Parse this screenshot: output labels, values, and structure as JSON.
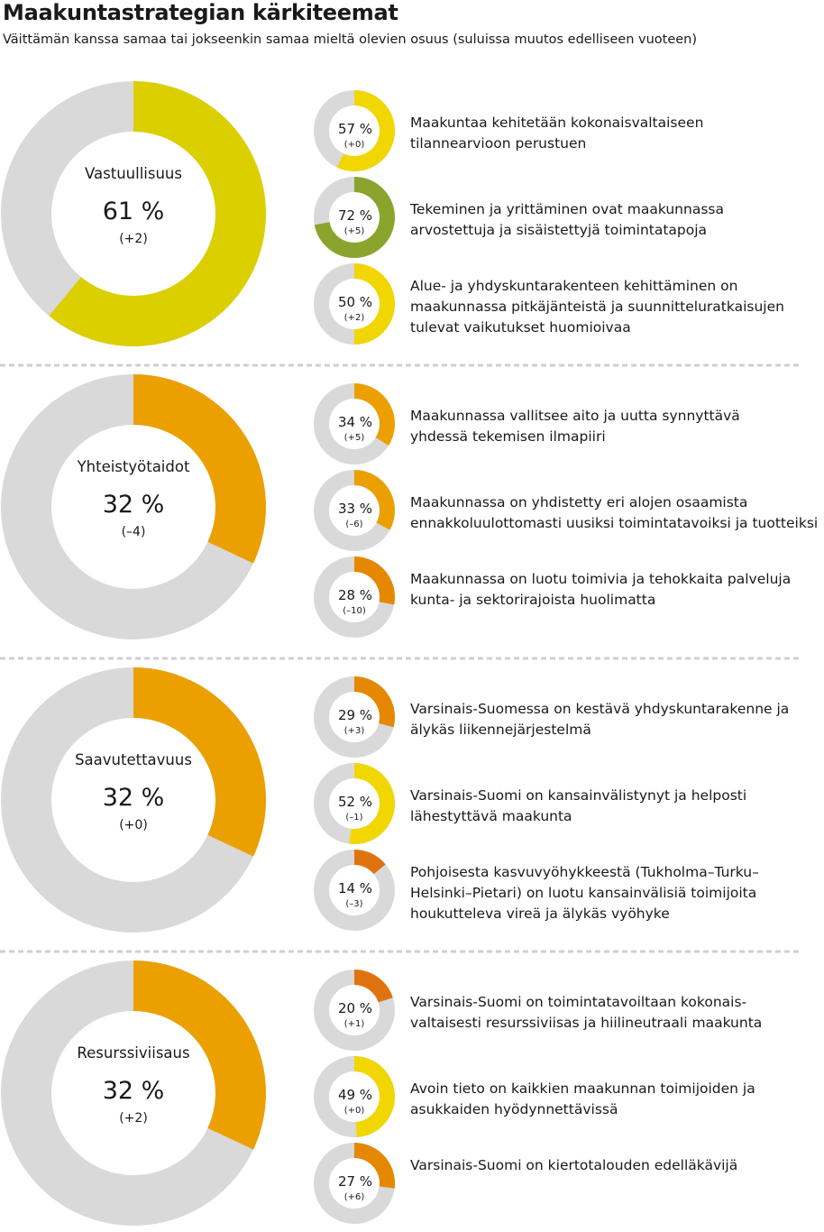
{
  "title": "Maakuntastrategian kärkiteemat",
  "subtitle": "Väittämän kanssa samaa tai jokseenkin samaa mieltä olevien osuus (suluissa muutos edelliseen vuoteen)",
  "colors": {
    "track": "#d9d9d9",
    "divider": "#cfcfcf",
    "yellow": "#f2d600",
    "green": "#8ba42d",
    "lime": "#dccf00",
    "amber": "#eba000",
    "orange": "#e58800",
    "dark_orange": "#e07310"
  },
  "chart_data": {
    "type": "donut",
    "sections": [
      {
        "name": "Vastuullisuus",
        "value": 61,
        "value_label": "61 %",
        "change_label": "(+2)",
        "color": "#dccf00",
        "items": [
          {
            "value": 57,
            "value_label": "57 %",
            "change_label": "(+0)",
            "color": "#f2d600",
            "lines": [
              "Maakuntaa kehitetään kokonaisvaltaiseen",
              "tilannearvioon perustuen"
            ]
          },
          {
            "value": 72,
            "value_label": "72 %",
            "change_label": "(+5)",
            "color": "#8ba42d",
            "lines": [
              "Tekeminen ja yrittäminen ovat maakunnassa",
              "arvostettuja ja sisäistettyjä toimintatapoja"
            ]
          },
          {
            "value": 50,
            "value_label": "50 %",
            "change_label": "(+2)",
            "color": "#f2d600",
            "lines": [
              "Alue- ja yhdyskuntarakenteen kehittäminen on",
              "maakunnassa pitkäjänteistä ja suunnitteluratkaisujen",
              "tulevat vaikutukset huomioivaa"
            ]
          }
        ]
      },
      {
        "name": "Yhteistyötaidot",
        "value": 32,
        "value_label": "32 %",
        "change_label": "(–4)",
        "color": "#eba000",
        "items": [
          {
            "value": 34,
            "value_label": "34 %",
            "change_label": "(+5)",
            "color": "#eba000",
            "lines": [
              "Maakunnassa vallitsee aito ja uutta synnyttävä",
              "yhdessä tekemisen ilmapiiri"
            ]
          },
          {
            "value": 33,
            "value_label": "33 %",
            "change_label": "(–6)",
            "color": "#eba000",
            "lines": [
              "Maakunnassa on yhdistetty eri alojen osaamista",
              "ennakkoluulottomasti uusiksi toimintatavoiksi ja tuotteiksi"
            ]
          },
          {
            "value": 28,
            "value_label": "28 %",
            "change_label": "(–10)",
            "color": "#e58800",
            "lines": [
              "Maakunnassa on luotu toimivia ja tehokkaita palveluja",
              "kunta- ja sektorirajoista huolimatta"
            ]
          }
        ]
      },
      {
        "name": "Saavutettavuus",
        "value": 32,
        "value_label": "32 %",
        "change_label": "(+0)",
        "color": "#eba000",
        "items": [
          {
            "value": 29,
            "value_label": "29 %",
            "change_label": "(+3)",
            "color": "#e58800",
            "lines": [
              "Varsinais-Suomessa on kestävä yhdyskuntarakenne ja",
              "älykäs liikennejärjestelmä"
            ]
          },
          {
            "value": 52,
            "value_label": "52 %",
            "change_label": "(–1)",
            "color": "#f2d600",
            "lines": [
              "Varsinais-Suomi on kansainvälistynyt ja helposti",
              "lähestyttävä maakunta"
            ]
          },
          {
            "value": 14,
            "value_label": "14 %",
            "change_label": "(–3)",
            "color": "#e07310",
            "lines": [
              "Pohjoisesta kasvuvyöhykkeestä (Tukholma–Turku–",
              "Helsinki–Pietari) on luotu kansainvälisiä toimijoita",
              "houkutteleva vireä ja älykäs vyöhyke"
            ]
          }
        ]
      },
      {
        "name": "Resurssiviisaus",
        "value": 32,
        "value_label": "32 %",
        "change_label": "(+2)",
        "color": "#eba000",
        "items": [
          {
            "value": 20,
            "value_label": "20 %",
            "change_label": "(+1)",
            "color": "#e07310",
            "lines": [
              "Varsinais-Suomi on toimintatavoiltaan kokonais-",
              "valtaisesti resurssiviisas ja hiilineutraali maakunta"
            ]
          },
          {
            "value": 49,
            "value_label": "49 %",
            "change_label": "(+0)",
            "color": "#f2d600",
            "lines": [
              "Avoin tieto on kaikkien maakunnan toimijoiden ja",
              "asukkaiden hyödynnettävissä"
            ]
          },
          {
            "value": 27,
            "value_label": "27 %",
            "change_label": "(+6)",
            "color": "#e58800",
            "lines": [
              "Varsinais-Suomi on kiertotalouden edelläkävijä"
            ]
          }
        ]
      }
    ]
  }
}
